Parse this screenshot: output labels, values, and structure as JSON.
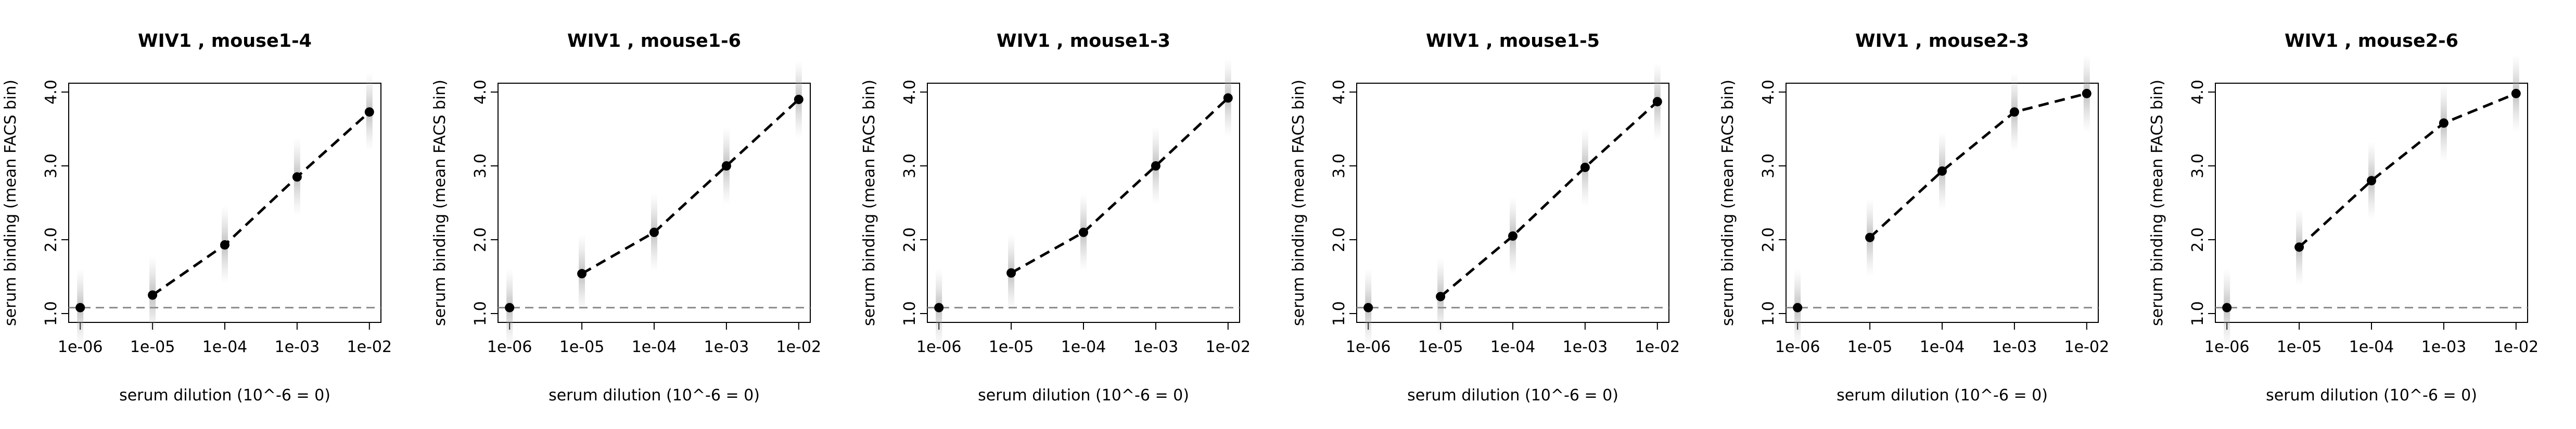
{
  "chart_data": [
    {
      "type": "line",
      "title": "WIV1 , mouse1-4",
      "xlabel": "serum dilution (10^-6 = 0)",
      "ylabel": "serum binding (mean FACS bin)",
      "x": [
        "1e-06",
        "1e-05",
        "1e-04",
        "1e-03",
        "1e-02"
      ],
      "xlim": [
        1e-06,
        0.01
      ],
      "x_scale": "log",
      "ylim": [
        1.0,
        4.0
      ],
      "yticks": [
        "1.0",
        "2.0",
        "3.0",
        "4.0"
      ],
      "baseline": 1.08,
      "series": [
        {
          "points": [
            [
              1e-06,
              1.08
            ],
            [
              1e-05,
              1.25
            ],
            [
              0.0001,
              1.93
            ],
            [
              0.001,
              2.85
            ],
            [
              0.01,
              3.73
            ]
          ],
          "dashed_from_index": 1
        }
      ]
    },
    {
      "type": "line",
      "title": "WIV1 , mouse1-6",
      "xlabel": "serum dilution (10^-6 = 0)",
      "ylabel": "serum binding (mean FACS bin)",
      "x": [
        "1e-06",
        "1e-05",
        "1e-04",
        "1e-03",
        "1e-02"
      ],
      "xlim": [
        1e-06,
        0.01
      ],
      "x_scale": "log",
      "ylim": [
        1.0,
        4.0
      ],
      "yticks": [
        "1.0",
        "2.0",
        "3.0",
        "4.0"
      ],
      "baseline": 1.08,
      "series": [
        {
          "points": [
            [
              1e-06,
              1.08
            ],
            [
              1e-05,
              1.54
            ],
            [
              0.0001,
              2.1
            ],
            [
              0.001,
              3.0
            ],
            [
              0.01,
              3.9
            ]
          ],
          "dashed_from_index": 1
        }
      ]
    },
    {
      "type": "line",
      "title": "WIV1 , mouse1-3",
      "xlabel": "serum dilution (10^-6 = 0)",
      "ylabel": "serum binding (mean FACS bin)",
      "x": [
        "1e-06",
        "1e-05",
        "1e-04",
        "1e-03",
        "1e-02"
      ],
      "xlim": [
        1e-06,
        0.01
      ],
      "x_scale": "log",
      "ylim": [
        1.0,
        4.0
      ],
      "yticks": [
        "1.0",
        "2.0",
        "3.0",
        "4.0"
      ],
      "baseline": 1.08,
      "series": [
        {
          "points": [
            [
              1e-06,
              1.08
            ],
            [
              1e-05,
              1.55
            ],
            [
              0.0001,
              2.1
            ],
            [
              0.001,
              3.0
            ],
            [
              0.01,
              3.92
            ]
          ],
          "dashed_from_index": 1
        }
      ]
    },
    {
      "type": "line",
      "title": "WIV1 , mouse1-5",
      "xlabel": "serum dilution (10^-6 = 0)",
      "ylabel": "serum binding (mean FACS bin)",
      "x": [
        "1e-06",
        "1e-05",
        "1e-04",
        "1e-03",
        "1e-02"
      ],
      "xlim": [
        1e-06,
        0.01
      ],
      "x_scale": "log",
      "ylim": [
        1.0,
        4.0
      ],
      "yticks": [
        "1.0",
        "2.0",
        "3.0",
        "4.0"
      ],
      "baseline": 1.08,
      "series": [
        {
          "points": [
            [
              1e-06,
              1.08
            ],
            [
              1e-05,
              1.23
            ],
            [
              0.0001,
              2.05
            ],
            [
              0.001,
              2.98
            ],
            [
              0.01,
              3.87
            ]
          ],
          "dashed_from_index": 1
        }
      ]
    },
    {
      "type": "line",
      "title": "WIV1 , mouse2-3",
      "xlabel": "serum dilution (10^-6 = 0)",
      "ylabel": "serum binding (mean FACS bin)",
      "x": [
        "1e-06",
        "1e-05",
        "1e-04",
        "1e-03",
        "1e-02"
      ],
      "xlim": [
        1e-06,
        0.01
      ],
      "x_scale": "log",
      "ylim": [
        1.0,
        4.0
      ],
      "yticks": [
        "1.0",
        "2.0",
        "3.0",
        "4.0"
      ],
      "baseline": 1.08,
      "series": [
        {
          "points": [
            [
              1e-06,
              1.08
            ],
            [
              1e-05,
              2.03
            ],
            [
              0.0001,
              2.93
            ],
            [
              0.001,
              3.73
            ],
            [
              0.01,
              3.98
            ]
          ],
          "dashed_from_index": 1
        }
      ]
    },
    {
      "type": "line",
      "title": "WIV1 , mouse2-6",
      "xlabel": "serum dilution (10^-6 = 0)",
      "ylabel": "serum binding (mean FACS bin)",
      "x": [
        "1e-06",
        "1e-05",
        "1e-04",
        "1e-03",
        "1e-02"
      ],
      "xlim": [
        1e-06,
        0.01
      ],
      "x_scale": "log",
      "ylim": [
        1.0,
        4.0
      ],
      "yticks": [
        "1.0",
        "2.0",
        "3.0",
        "4.0"
      ],
      "baseline": 1.08,
      "series": [
        {
          "points": [
            [
              1e-06,
              1.08
            ],
            [
              1e-05,
              1.9
            ],
            [
              0.0001,
              2.8
            ],
            [
              0.001,
              3.58
            ],
            [
              0.01,
              3.98
            ]
          ],
          "dashed_from_index": 1
        }
      ]
    }
  ]
}
